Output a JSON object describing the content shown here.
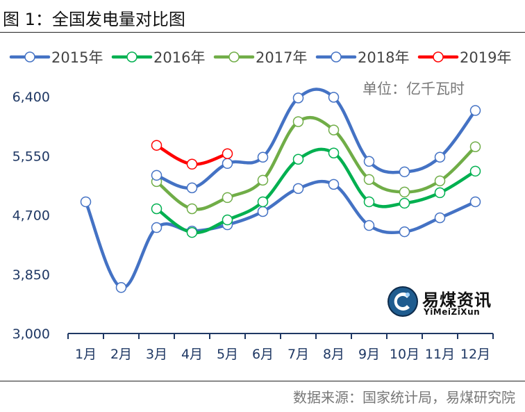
{
  "figure_title": "图 1：全国发电量对比图",
  "unit": "单位：亿千瓦时",
  "source": "数据来源：国家统计局，易煤研究院",
  "watermark": {
    "cn": "易煤资讯",
    "en": "YiMeiZiXun"
  },
  "chart_data": {
    "type": "line",
    "title": "",
    "xlabel": "",
    "ylabel": "",
    "categories": [
      "1月",
      "2月",
      "3月",
      "4月",
      "5月",
      "6月",
      "7月",
      "8月",
      "9月",
      "10月",
      "11月",
      "12月"
    ],
    "ylim": [
      3000,
      6400
    ],
    "yticks": [
      3000,
      3850,
      4700,
      5550,
      6400
    ],
    "ytick_labels": [
      "3,000",
      "3,850",
      "4,700",
      "5,550",
      "6,400"
    ],
    "grid": false,
    "legend_position": "top",
    "series": [
      {
        "name": "2015年",
        "color": "#4472C4",
        "values": [
          4890,
          3660,
          4520,
          4470,
          4560,
          4750,
          5080,
          5140,
          4550,
          4460,
          4660,
          4890
        ]
      },
      {
        "name": "2016年",
        "color": "#00B050",
        "values": [
          null,
          null,
          4790,
          4450,
          4630,
          4890,
          5500,
          5590,
          4890,
          4870,
          5020,
          5330
        ]
      },
      {
        "name": "2017年",
        "color": "#70AD47",
        "values": [
          null,
          null,
          5180,
          4790,
          4950,
          5200,
          6040,
          5920,
          5210,
          5030,
          5190,
          5680
        ]
      },
      {
        "name": "2018年",
        "color": "#4472C4",
        "values": [
          null,
          null,
          5270,
          5090,
          5440,
          5530,
          6380,
          6390,
          5470,
          5320,
          5530,
          6200
        ]
      },
      {
        "name": "2019年",
        "color": "#FF0000",
        "values": [
          null,
          null,
          5700,
          5430,
          5580,
          null,
          null,
          null,
          null,
          null,
          null,
          null
        ]
      }
    ]
  }
}
